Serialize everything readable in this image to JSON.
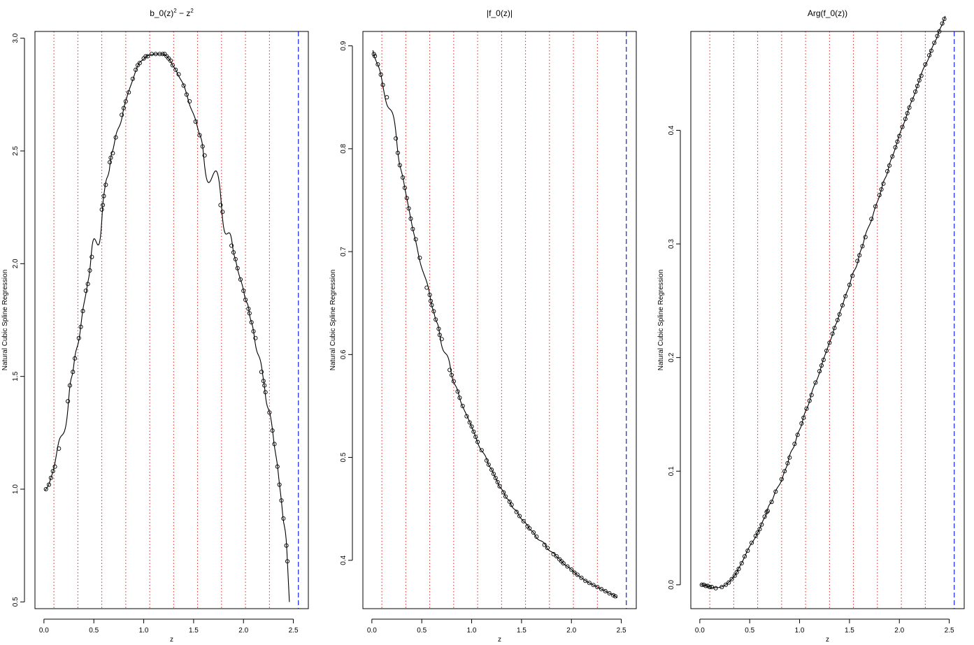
{
  "chart_data": [
    {
      "type": "scatter",
      "title": "b_0(z)² − z²",
      "title_parts": {
        "base": "b_0(z)",
        "sup1": "2",
        "minus": " − z",
        "sup2": "2"
      },
      "xlabel": "z",
      "ylabel": "Natural Cubic Spline Regression",
      "xlim": [
        -0.09,
        2.65
      ],
      "ylim": [
        0.47,
        3.03
      ],
      "xticks": [
        0.0,
        0.5,
        1.0,
        1.5,
        2.0,
        2.5
      ],
      "xtick_labels": [
        "0.0",
        "0.5",
        "1.0",
        "1.5",
        "2.0",
        "2.5"
      ],
      "yticks": [
        0.5,
        1.0,
        1.5,
        2.0,
        2.5,
        3.0
      ],
      "ytick_labels": [
        "0.5",
        "1.0",
        "1.5",
        "2.0",
        "2.5",
        "3.0"
      ],
      "knots": [
        0.1,
        0.34,
        0.58,
        0.82,
        1.06,
        1.3,
        1.54,
        1.78,
        2.02,
        2.26
      ],
      "boundary": 2.55,
      "curve": {
        "x0": 0.01,
        "x1": 2.46,
        "name": "spline"
      },
      "points": {
        "x": [
          0.02,
          0.05,
          0.07,
          0.09,
          0.11,
          0.15,
          0.24,
          0.26,
          0.29,
          0.31,
          0.35,
          0.37,
          0.39,
          0.42,
          0.44,
          0.46,
          0.48,
          0.58,
          0.59,
          0.6,
          0.62,
          0.66,
          0.67,
          0.69,
          0.72,
          0.78,
          0.8,
          0.82,
          0.85,
          0.89,
          0.92,
          0.94,
          0.96,
          1.0,
          1.02,
          1.04,
          1.08,
          1.12,
          1.16,
          1.19,
          1.21,
          1.23,
          1.25,
          1.27,
          1.29,
          1.32,
          1.35,
          1.4,
          1.43,
          1.46,
          1.52,
          1.56,
          1.59,
          1.61,
          1.77,
          1.79,
          1.88,
          1.9,
          1.92,
          1.94,
          1.97,
          2.0,
          2.02,
          2.05,
          2.06,
          2.08,
          2.1,
          2.12,
          2.18,
          2.2,
          2.21,
          2.22,
          2.26,
          2.29,
          2.31,
          2.34,
          2.36,
          2.38,
          2.4,
          2.43,
          2.44
        ],
        "y": [
          1.0,
          1.02,
          1.05,
          1.08,
          1.1,
          1.18,
          1.39,
          1.46,
          1.52,
          1.58,
          1.67,
          1.72,
          1.79,
          1.88,
          1.91,
          1.97,
          2.03,
          2.24,
          2.26,
          2.3,
          2.35,
          2.45,
          2.47,
          2.49,
          2.56,
          2.66,
          2.69,
          2.72,
          2.76,
          2.82,
          2.86,
          2.88,
          2.89,
          2.91,
          2.92,
          2.92,
          2.93,
          2.93,
          2.93,
          2.93,
          2.93,
          2.92,
          2.91,
          2.9,
          2.88,
          2.86,
          2.84,
          2.79,
          2.75,
          2.72,
          2.63,
          2.57,
          2.52,
          2.48,
          2.26,
          2.23,
          2.08,
          2.05,
          2.02,
          1.98,
          1.93,
          1.88,
          1.84,
          1.8,
          1.78,
          1.74,
          1.7,
          1.67,
          1.52,
          1.48,
          1.46,
          1.43,
          1.34,
          1.26,
          1.2,
          1.1,
          1.02,
          0.95,
          0.87,
          0.75,
          0.68
        ]
      }
    },
    {
      "type": "scatter",
      "title": "|f_0(z)|",
      "xlabel": "z",
      "ylabel": "Natural Cubic Spline Regression",
      "xlim": [
        -0.09,
        2.65
      ],
      "ylim": [
        0.353,
        0.914
      ],
      "xticks": [
        0.0,
        0.5,
        1.0,
        1.5,
        2.0,
        2.5
      ],
      "xtick_labels": [
        "0.0",
        "0.5",
        "1.0",
        "1.5",
        "2.0",
        "2.5"
      ],
      "yticks": [
        0.4,
        0.5,
        0.6,
        0.7,
        0.8,
        0.9
      ],
      "ytick_labels": [
        "0.4",
        "0.5",
        "0.6",
        "0.7",
        "0.8",
        "0.9"
      ],
      "knots": [
        0.1,
        0.34,
        0.58,
        0.82,
        1.06,
        1.3,
        1.54,
        1.78,
        2.02,
        2.26
      ],
      "boundary": 2.55,
      "curve": {
        "x0": 0.01,
        "x1": 2.46,
        "name": "spline"
      },
      "points": {
        "x": [
          0.02,
          0.03,
          0.06,
          0.09,
          0.11,
          0.15,
          0.24,
          0.26,
          0.28,
          0.31,
          0.33,
          0.35,
          0.37,
          0.39,
          0.41,
          0.44,
          0.48,
          0.55,
          0.58,
          0.59,
          0.6,
          0.62,
          0.64,
          0.67,
          0.68,
          0.7,
          0.78,
          0.8,
          0.82,
          0.86,
          0.88,
          0.91,
          0.95,
          0.98,
          1.0,
          1.02,
          1.04,
          1.06,
          1.1,
          1.15,
          1.17,
          1.2,
          1.22,
          1.24,
          1.26,
          1.28,
          1.32,
          1.34,
          1.38,
          1.4,
          1.45,
          1.48,
          1.52,
          1.56,
          1.58,
          1.62,
          1.65,
          1.73,
          1.76,
          1.82,
          1.85,
          1.88,
          1.9,
          1.92,
          1.96,
          2.0,
          2.03,
          2.06,
          2.1,
          2.14,
          2.18,
          2.22,
          2.26,
          2.3,
          2.34,
          2.38,
          2.42,
          2.44
        ],
        "y": [
          0.892,
          0.89,
          0.882,
          0.872,
          0.862,
          0.85,
          0.81,
          0.796,
          0.784,
          0.772,
          0.762,
          0.752,
          0.742,
          0.732,
          0.722,
          0.712,
          0.694,
          0.665,
          0.658,
          0.652,
          0.648,
          0.642,
          0.634,
          0.625,
          0.619,
          0.615,
          0.585,
          0.58,
          0.574,
          0.564,
          0.558,
          0.55,
          0.54,
          0.534,
          0.53,
          0.525,
          0.52,
          0.515,
          0.507,
          0.497,
          0.493,
          0.488,
          0.484,
          0.48,
          0.476,
          0.472,
          0.466,
          0.462,
          0.457,
          0.454,
          0.447,
          0.443,
          0.438,
          0.433,
          0.431,
          0.427,
          0.423,
          0.415,
          0.412,
          0.406,
          0.404,
          0.401,
          0.399,
          0.397,
          0.394,
          0.391,
          0.388,
          0.386,
          0.383,
          0.38,
          0.378,
          0.376,
          0.374,
          0.372,
          0.37,
          0.368,
          0.366,
          0.365
        ]
      }
    },
    {
      "type": "scatter",
      "title": "Arg(f_0(z))",
      "xlabel": "z",
      "ylabel": "Natural Cubic Spline Regression",
      "xlim": [
        -0.09,
        2.65
      ],
      "ylim": [
        -0.021,
        0.487
      ],
      "xticks": [
        0.0,
        0.5,
        1.0,
        1.5,
        2.0,
        2.5
      ],
      "xtick_labels": [
        "0.0",
        "0.5",
        "1.0",
        "1.5",
        "2.0",
        "2.5"
      ],
      "yticks": [
        0.0,
        0.1,
        0.2,
        0.3,
        0.4
      ],
      "ytick_labels": [
        "0.0",
        "0.1",
        "0.2",
        "0.3",
        "0.4"
      ],
      "knots": [
        0.1,
        0.34,
        0.58,
        0.82,
        1.06,
        1.3,
        1.54,
        1.78,
        2.02,
        2.26
      ],
      "boundary": 2.55,
      "curve": {
        "x0": 0.01,
        "x1": 2.46,
        "name": "spline"
      },
      "points": {
        "x": [
          0.02,
          0.04,
          0.06,
          0.08,
          0.1,
          0.12,
          0.16,
          0.22,
          0.26,
          0.29,
          0.32,
          0.35,
          0.37,
          0.39,
          0.42,
          0.45,
          0.48,
          0.52,
          0.56,
          0.58,
          0.6,
          0.62,
          0.65,
          0.67,
          0.68,
          0.72,
          0.76,
          0.82,
          0.85,
          0.88,
          0.9,
          0.95,
          0.98,
          1.02,
          1.04,
          1.07,
          1.1,
          1.12,
          1.16,
          1.2,
          1.22,
          1.24,
          1.27,
          1.3,
          1.33,
          1.35,
          1.38,
          1.4,
          1.43,
          1.46,
          1.5,
          1.53,
          1.58,
          1.6,
          1.63,
          1.66,
          1.72,
          1.76,
          1.8,
          1.82,
          1.84,
          1.88,
          1.9,
          1.93,
          1.96,
          1.98,
          2.0,
          2.03,
          2.06,
          2.08,
          2.1,
          2.13,
          2.16,
          2.18,
          2.2,
          2.22,
          2.26,
          2.3,
          2.32,
          2.35,
          2.38,
          2.4,
          2.43,
          2.45
        ],
        "y": [
          0.0,
          0.0,
          -0.001,
          -0.001,
          -0.002,
          -0.002,
          -0.003,
          -0.002,
          0.0,
          0.002,
          0.005,
          0.008,
          0.011,
          0.014,
          0.019,
          0.025,
          0.03,
          0.037,
          0.043,
          0.046,
          0.049,
          0.053,
          0.06,
          0.064,
          0.065,
          0.073,
          0.082,
          0.093,
          0.1,
          0.107,
          0.112,
          0.124,
          0.132,
          0.142,
          0.147,
          0.155,
          0.162,
          0.167,
          0.178,
          0.188,
          0.193,
          0.198,
          0.206,
          0.213,
          0.221,
          0.226,
          0.233,
          0.238,
          0.246,
          0.254,
          0.264,
          0.272,
          0.285,
          0.29,
          0.298,
          0.306,
          0.322,
          0.333,
          0.343,
          0.348,
          0.353,
          0.364,
          0.369,
          0.377,
          0.385,
          0.39,
          0.395,
          0.403,
          0.41,
          0.415,
          0.42,
          0.427,
          0.434,
          0.439,
          0.444,
          0.448,
          0.458,
          0.466,
          0.47,
          0.477,
          0.483,
          0.487,
          0.494,
          0.498
        ]
      }
    }
  ]
}
